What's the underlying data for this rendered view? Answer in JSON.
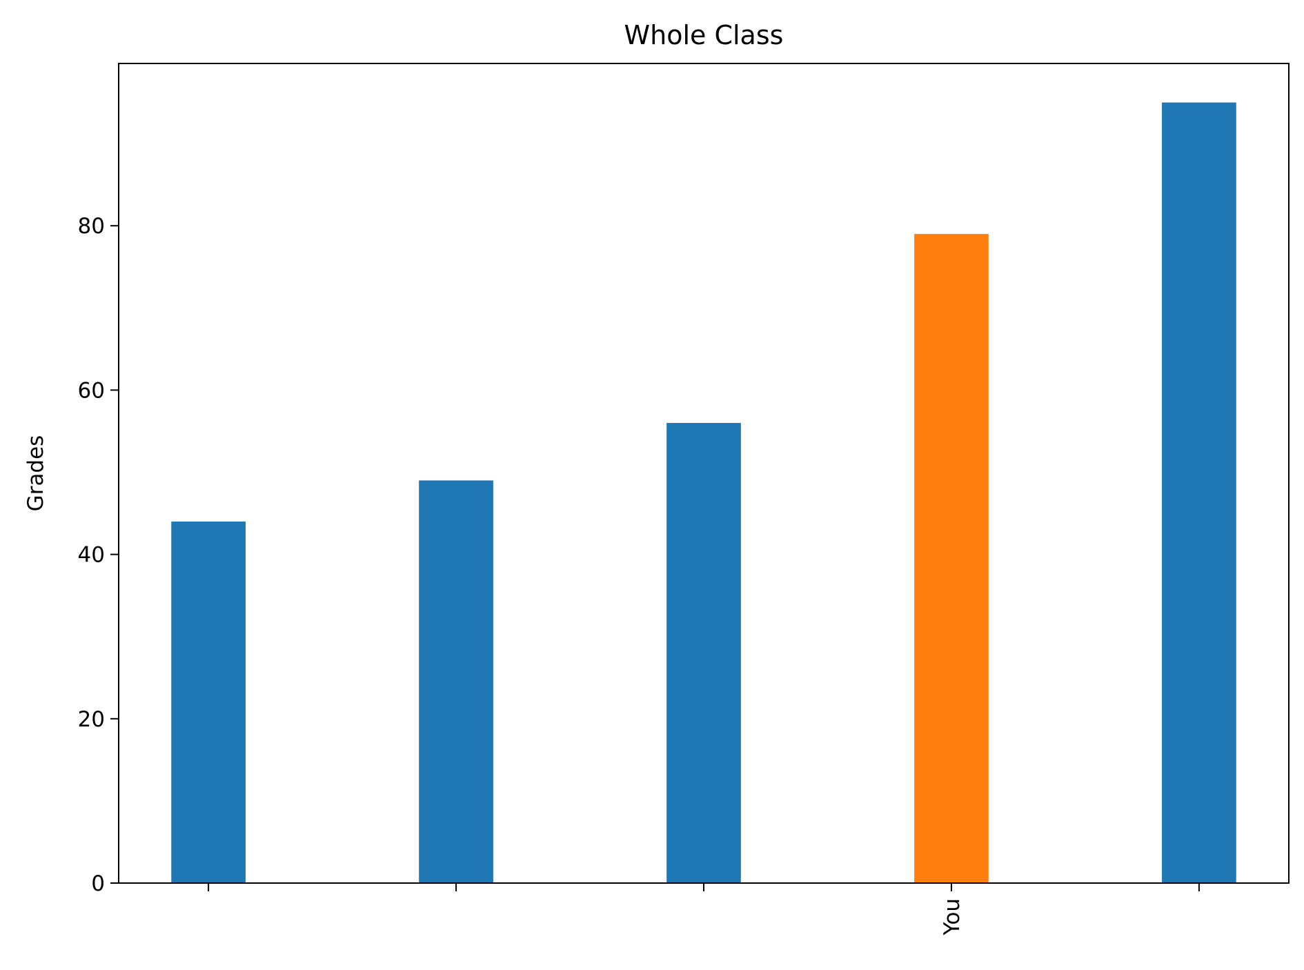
{
  "chart_data": {
    "type": "bar",
    "title": "Whole Class",
    "xlabel": "",
    "ylabel": "Grades",
    "categories": [
      "",
      "",
      "",
      "You",
      ""
    ],
    "values": [
      44,
      49,
      56,
      79,
      95
    ],
    "bar_colors": [
      "#1f77b4",
      "#1f77b4",
      "#1f77b4",
      "#ff7f0e",
      "#1f77b4"
    ],
    "yticks": [
      0,
      20,
      40,
      60,
      80
    ],
    "ylim": [
      0,
      99.75
    ],
    "grid": false,
    "legend": "none"
  }
}
